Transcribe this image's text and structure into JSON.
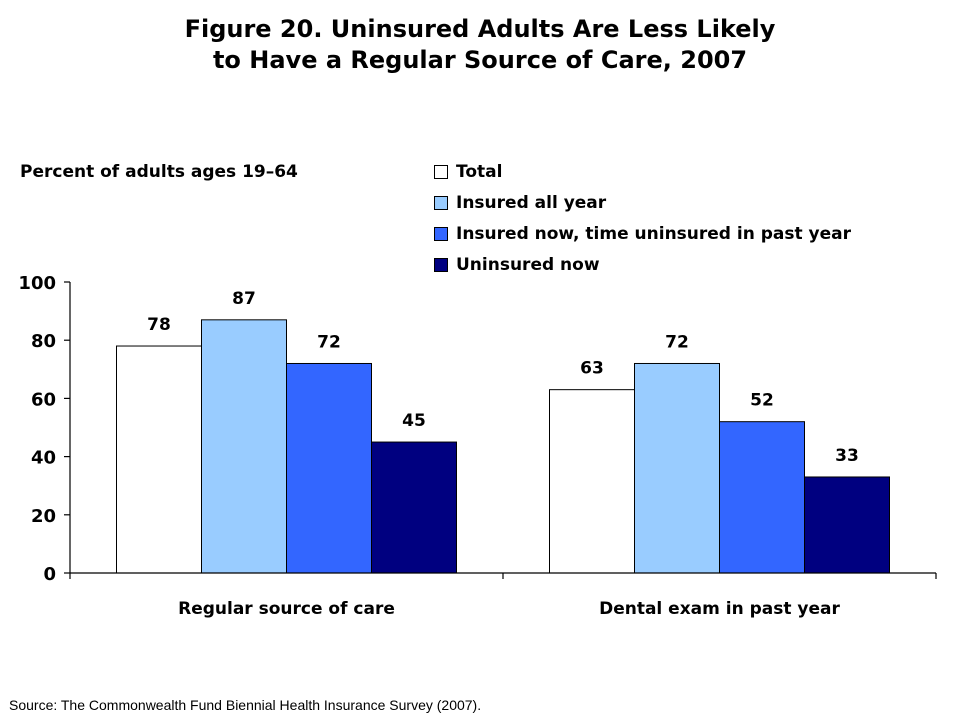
{
  "chart_data": {
    "type": "bar",
    "title": [
      "Figure 20. Uninsured Adults Are Less Likely",
      "to Have a Regular Source of Care, 2007"
    ],
    "ylabel": "Percent of adults ages 19–64",
    "categories": [
      "Regular source of care",
      "Dental exam in past year"
    ],
    "series": [
      {
        "name": "Total",
        "color": "#ffffff",
        "values": [
          78,
          63
        ]
      },
      {
        "name": "Insured all year",
        "color": "#99ccff",
        "values": [
          87,
          72
        ]
      },
      {
        "name": "Insured now, time uninsured in past year",
        "color": "#3366ff",
        "values": [
          72,
          52
        ]
      },
      {
        "name": "Uninsured now",
        "color": "#000080",
        "values": [
          45,
          33
        ]
      }
    ],
    "ylim": [
      0,
      100
    ],
    "yticks": [
      0,
      20,
      40,
      60,
      80,
      100
    ],
    "legend_position": "top-right",
    "grid": false
  },
  "source": "Source: The Commonwealth Fund Biennial Health Insurance Survey (2007)."
}
